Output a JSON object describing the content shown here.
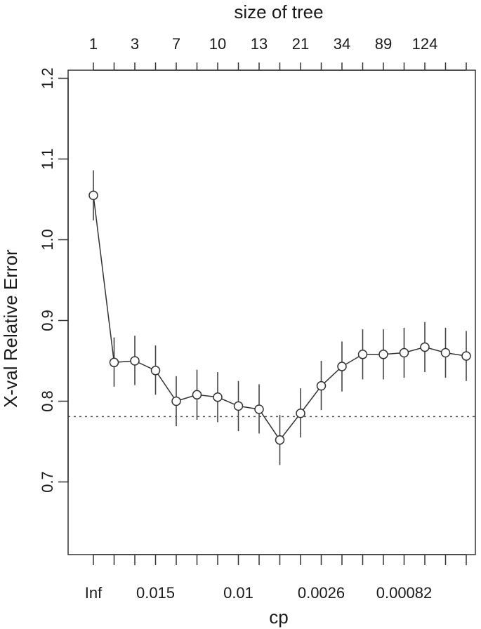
{
  "chart_data": {
    "type": "line",
    "top_axis_title": "size of tree",
    "top_tick_labels": [
      "1",
      "3",
      "7",
      "10",
      "13",
      "21",
      "34",
      "89",
      "124"
    ],
    "top_tick_label_indices": [
      0,
      2,
      4,
      6,
      8,
      10,
      12,
      14,
      16
    ],
    "xlabel": "cp",
    "bottom_tick_labels": [
      "Inf",
      "0.015",
      "0.01",
      "0.0026",
      "0.00082"
    ],
    "bottom_tick_label_indices": [
      0,
      3,
      7,
      11,
      15
    ],
    "ylabel": "X-val Relative Error",
    "y_ticks": [
      "0.7",
      "0.8",
      "0.9",
      "1.0",
      "1.1",
      "1.2"
    ],
    "ylim": [
      0.61,
      1.21
    ],
    "reference_line": {
      "y": 0.781,
      "style": "dotted"
    },
    "series": [
      {
        "values": [
          1.055,
          0.848,
          0.85,
          0.838,
          0.8,
          0.808,
          0.805,
          0.794,
          0.79,
          0.752,
          0.785,
          0.819,
          0.843,
          0.858,
          0.858,
          0.86,
          0.867,
          0.86,
          0.856
        ],
        "error_low": [
          1.024,
          0.818,
          0.82,
          0.808,
          0.769,
          0.777,
          0.774,
          0.763,
          0.76,
          0.721,
          0.755,
          0.789,
          0.812,
          0.827,
          0.827,
          0.829,
          0.836,
          0.829,
          0.825
        ],
        "error_high": [
          1.086,
          0.879,
          0.881,
          0.869,
          0.831,
          0.839,
          0.836,
          0.825,
          0.821,
          0.783,
          0.816,
          0.85,
          0.874,
          0.889,
          0.889,
          0.891,
          0.898,
          0.891,
          0.887
        ]
      }
    ],
    "grid": false
  }
}
